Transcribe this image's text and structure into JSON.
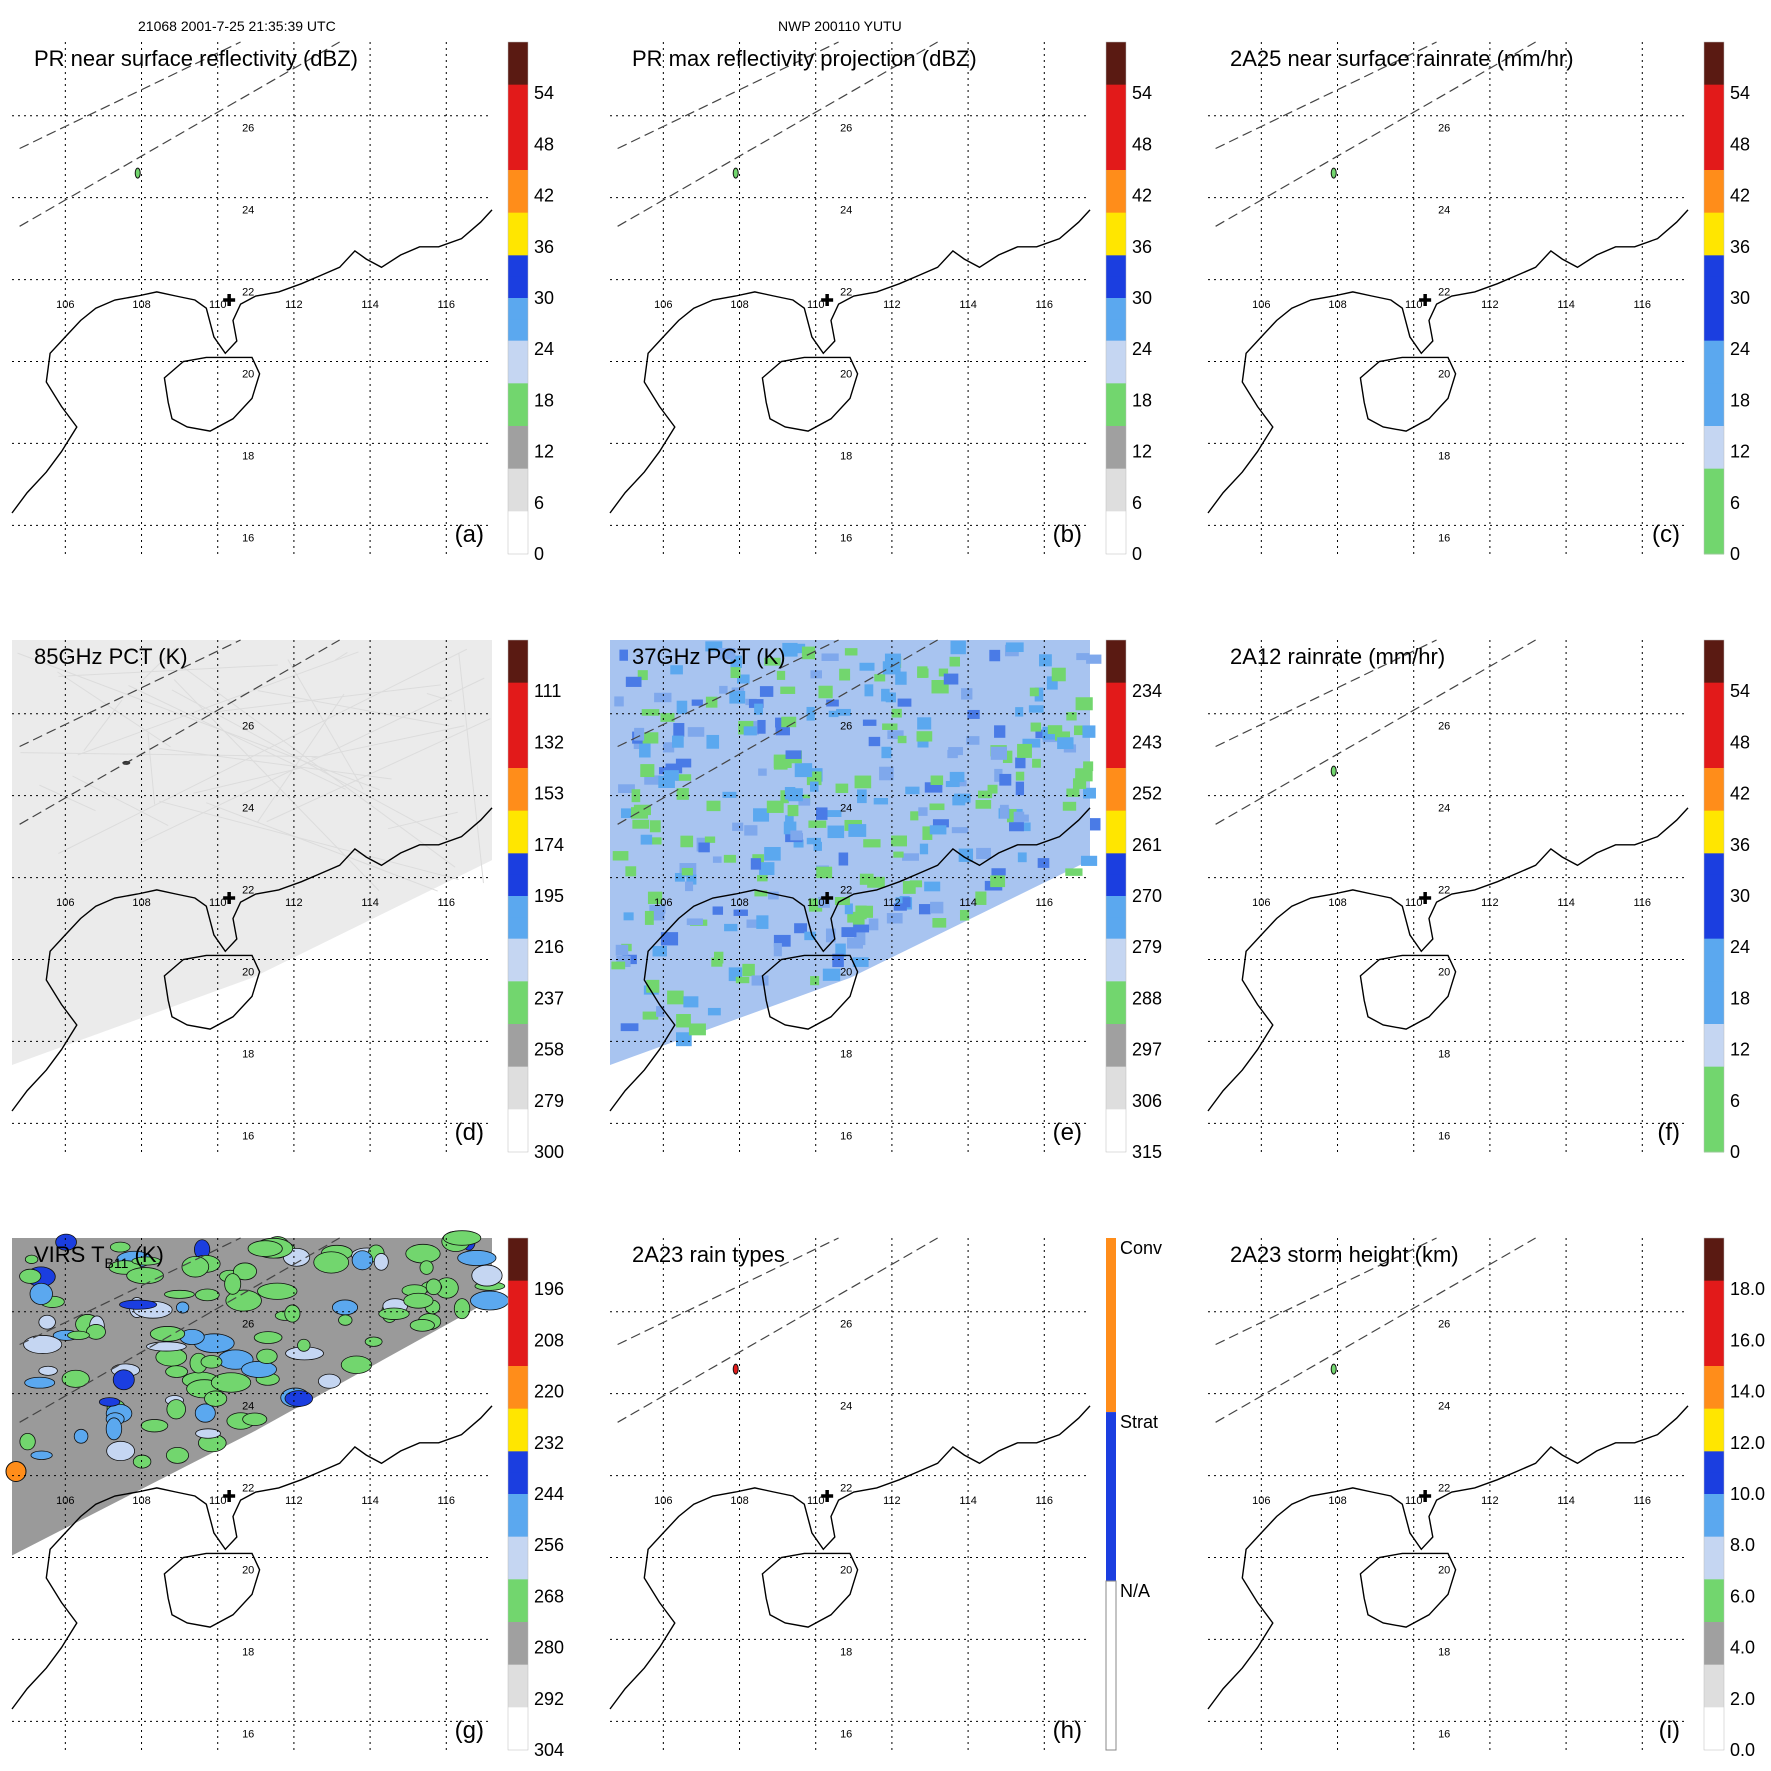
{
  "header": {
    "orbit_info": "21068 2001-7-25 21:35:39 UTC",
    "storm_info": "NWP 200110 YUTU"
  },
  "colors": {
    "coast": "#000000",
    "grid": "#000000",
    "track": "#444444",
    "white": "#ffffff",
    "lightgray": "#dedede",
    "gray": "#a0a0a0",
    "green": "#72d66e",
    "lightblue": "#c5d6f2",
    "skyblue": "#5ba8ef",
    "blue": "#1b3ee0",
    "yellow": "#ffe600",
    "orange": "#ff8d1a",
    "red": "#e21a1a",
    "darkred": "#5a1a12"
  },
  "chart_data": [
    {
      "type": "heatmap",
      "id": "a",
      "panel_letter": "(a)",
      "title": "PR near surface reflectivity (dBZ)",
      "colorbar": {
        "ticks": [
          "54",
          "48",
          "42",
          "36",
          "30",
          "24",
          "18",
          "12",
          "6",
          "0"
        ],
        "range": [
          0,
          60
        ],
        "unit": "dBZ"
      },
      "swath": "none"
    },
    {
      "type": "heatmap",
      "id": "b",
      "panel_letter": "(b)",
      "title": "PR max reflectivity projection (dBZ)",
      "colorbar": {
        "ticks": [
          "54",
          "48",
          "42",
          "36",
          "30",
          "24",
          "18",
          "12",
          "6",
          "0"
        ],
        "range": [
          0,
          60
        ],
        "unit": "dBZ"
      },
      "swath": "none"
    },
    {
      "type": "heatmap",
      "id": "c",
      "panel_letter": "(c)",
      "title": "2A25 near surface rainrate (mm/hr)",
      "colorbar": {
        "ticks": [
          "54",
          "48",
          "42",
          "36",
          "30",
          "24",
          "18",
          "12",
          "6",
          "0"
        ],
        "range": [
          0,
          60
        ],
        "unit": "mm/hr",
        "style": "rain"
      },
      "swath": "none"
    },
    {
      "type": "heatmap",
      "id": "d",
      "panel_letter": "(d)",
      "title": "85GHz PCT (K)",
      "colorbar": {
        "ticks": [
          "111",
          "132",
          "153",
          "174",
          "195",
          "216",
          "237",
          "258",
          "279",
          "300"
        ],
        "range": [
          300,
          90
        ],
        "unit": "K"
      },
      "swath": "gray"
    },
    {
      "type": "heatmap",
      "id": "e",
      "panel_letter": "(e)",
      "title": "37GHz PCT (K)",
      "colorbar": {
        "ticks": [
          "234",
          "243",
          "252",
          "261",
          "270",
          "279",
          "288",
          "297",
          "306",
          "315"
        ],
        "range": [
          315,
          225
        ],
        "unit": "K"
      },
      "swath": "blue"
    },
    {
      "type": "heatmap",
      "id": "f",
      "panel_letter": "(f)",
      "title": "2A12 rainrate (mm/hr)",
      "colorbar": {
        "ticks": [
          "54",
          "48",
          "42",
          "36",
          "30",
          "24",
          "18",
          "12",
          "6",
          "0"
        ],
        "range": [
          0,
          60
        ],
        "unit": "mm/hr",
        "style": "rain"
      },
      "swath": "none"
    },
    {
      "type": "heatmap",
      "id": "g",
      "panel_letter": "(g)",
      "title": "VIRS T",
      "title_sub": "B11",
      "title_suffix": " (K)",
      "colorbar": {
        "ticks": [
          "196",
          "208",
          "220",
          "232",
          "244",
          "256",
          "268",
          "280",
          "292",
          "304"
        ],
        "range": [
          304,
          184
        ],
        "unit": "K"
      },
      "swath": "ir"
    },
    {
      "type": "heatmap",
      "id": "h",
      "panel_letter": "(h)",
      "title": "2A23 rain types",
      "colorbar": {
        "categorical": true,
        "categories": [
          "Conv",
          "Strat",
          "N/A"
        ]
      },
      "swath": "none"
    },
    {
      "type": "heatmap",
      "id": "i",
      "panel_letter": "(i)",
      "title": "2A23 storm height (km)",
      "colorbar": {
        "ticks": [
          "18.0",
          "16.0",
          "14.0",
          "12.0",
          "10.0",
          "8.0",
          "6.0",
          "4.0",
          "2.0",
          "0.0"
        ],
        "range": [
          0,
          20
        ],
        "unit": "km"
      },
      "swath": "none"
    }
  ],
  "map": {
    "lon_labels": [
      "106",
      "108",
      "110",
      "112",
      "114",
      "116"
    ],
    "lat_labels": [
      "26",
      "24",
      "22",
      "20",
      "18",
      "16"
    ],
    "lon_values": [
      106,
      108,
      110,
      112,
      114,
      116
    ],
    "lat_values": [
      26,
      24,
      22,
      20,
      18,
      16
    ],
    "storm_center": {
      "lon": 110.3,
      "lat": 21.5
    },
    "coastline": [
      [
        104.6,
        16.3
      ],
      [
        105.0,
        16.8
      ],
      [
        105.5,
        17.3
      ],
      [
        105.9,
        17.8
      ],
      [
        106.3,
        18.4
      ],
      [
        105.9,
        18.9
      ],
      [
        105.5,
        19.5
      ],
      [
        105.6,
        20.2
      ],
      [
        106.0,
        20.6
      ],
      [
        106.4,
        21.0
      ],
      [
        106.8,
        21.3
      ],
      [
        107.3,
        21.5
      ],
      [
        107.9,
        21.6
      ],
      [
        108.4,
        21.7
      ],
      [
        108.9,
        21.6
      ],
      [
        109.4,
        21.5
      ],
      [
        109.7,
        21.3
      ],
      [
        109.9,
        20.6
      ],
      [
        110.2,
        20.2
      ],
      [
        110.5,
        20.5
      ],
      [
        110.4,
        21.0
      ],
      [
        110.6,
        21.4
      ],
      [
        111.0,
        21.6
      ],
      [
        111.6,
        21.7
      ],
      [
        112.2,
        21.9
      ],
      [
        112.7,
        22.1
      ],
      [
        113.2,
        22.3
      ],
      [
        113.6,
        22.7
      ],
      [
        113.9,
        22.5
      ],
      [
        114.3,
        22.3
      ],
      [
        114.8,
        22.6
      ],
      [
        115.3,
        22.8
      ],
      [
        115.8,
        22.8
      ],
      [
        116.4,
        23.0
      ],
      [
        116.9,
        23.4
      ],
      [
        117.2,
        23.7
      ]
    ],
    "hainan": [
      [
        108.7,
        19.0
      ],
      [
        108.6,
        19.6
      ],
      [
        109.1,
        20.0
      ],
      [
        109.7,
        20.1
      ],
      [
        110.3,
        20.1
      ],
      [
        110.9,
        20.1
      ],
      [
        111.1,
        19.7
      ],
      [
        110.9,
        19.1
      ],
      [
        110.4,
        18.6
      ],
      [
        109.8,
        18.3
      ],
      [
        109.2,
        18.4
      ],
      [
        108.8,
        18.6
      ]
    ],
    "track_lines": [
      {
        "from": [
          104.8,
          25.2
        ],
        "to": [
          110.6,
          27.8
        ]
      },
      {
        "from": [
          104.8,
          23.3
        ],
        "to": [
          113.2,
          27.8
        ]
      }
    ]
  }
}
